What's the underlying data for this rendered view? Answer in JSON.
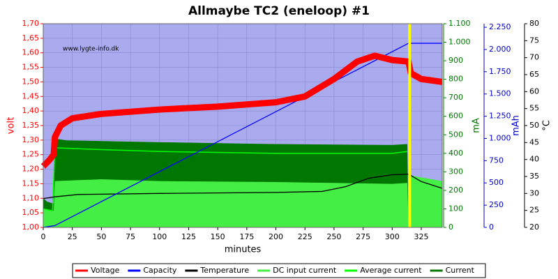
{
  "chart_data": {
    "type": "line",
    "title": "Allmaybe TC2 (eneloop) #1",
    "watermark": "www.lygte-info.dk",
    "xlabel": "minutes",
    "ylabel": "volt",
    "y2label": "mA",
    "y3label": "mAh",
    "y4label": "°C",
    "xlim": [
      0,
      343
    ],
    "xticks": [
      0,
      25,
      50,
      75,
      100,
      125,
      150,
      175,
      200,
      225,
      250,
      275,
      300,
      325
    ],
    "ylim": [
      1.0,
      1.7
    ],
    "yticks": [
      {
        "value": 1.0,
        "label": "1,00"
      },
      {
        "value": 1.05,
        "label": "1,05"
      },
      {
        "value": 1.1,
        "label": "1,10"
      },
      {
        "value": 1.15,
        "label": "1,15"
      },
      {
        "value": 1.2,
        "label": "1,20"
      },
      {
        "value": 1.25,
        "label": "1,25"
      },
      {
        "value": 1.3,
        "label": "1,30"
      },
      {
        "value": 1.35,
        "label": "1,35"
      },
      {
        "value": 1.4,
        "label": "1,40"
      },
      {
        "value": 1.45,
        "label": "1,45"
      },
      {
        "value": 1.5,
        "label": "1,50"
      },
      {
        "value": 1.55,
        "label": "1,55"
      },
      {
        "value": 1.6,
        "label": "1,60"
      },
      {
        "value": 1.65,
        "label": "1,65"
      },
      {
        "value": 1.7,
        "label": "1,70"
      }
    ],
    "y2lim": [
      0,
      1100
    ],
    "y2ticks": [
      0,
      100,
      200,
      300,
      400,
      500,
      600,
      700,
      800,
      900,
      {
        "value": 1000,
        "label": "1.000"
      },
      {
        "value": 1100,
        "label": "1.100"
      }
    ],
    "y3lim": [
      0,
      2290
    ],
    "y3ticks": [
      0,
      250,
      500,
      750,
      {
        "value": 1000,
        "label": "1.000"
      },
      {
        "value": 1250,
        "label": "1.250"
      },
      {
        "value": 1500,
        "label": "1.500"
      },
      {
        "value": 1750,
        "label": "1.750"
      },
      {
        "value": 2000,
        "label": "2.000"
      },
      {
        "value": 2250,
        "label": "2.250"
      }
    ],
    "y4lim": [
      20,
      80
    ],
    "y4ticks": [
      20,
      25,
      30,
      35,
      40,
      45,
      50,
      55,
      60,
      65,
      70,
      75,
      80
    ],
    "marker_x": 315,
    "marker_color": "#ffff00",
    "background": "#aaaaee",
    "series": [
      {
        "name": "Voltage",
        "color": "#ff0000",
        "axis": "y",
        "x": [
          0,
          5,
          9,
          10,
          15,
          25,
          50,
          100,
          150,
          200,
          225,
          250,
          270,
          285,
          300,
          314,
          316,
          325,
          343
        ],
        "values": [
          1.21,
          1.23,
          1.25,
          1.31,
          1.35,
          1.375,
          1.39,
          1.405,
          1.415,
          1.43,
          1.45,
          1.51,
          1.57,
          1.59,
          1.575,
          1.57,
          1.53,
          1.51,
          1.5
        ]
      },
      {
        "name": "Capacity",
        "color": "#0000ff",
        "axis": "y3",
        "x": [
          0,
          10,
          314,
          343
        ],
        "values": [
          0,
          20,
          2070,
          2070
        ]
      },
      {
        "name": "Temperature",
        "color": "#000000",
        "axis": "y4",
        "x": [
          0,
          10,
          30,
          100,
          200,
          240,
          260,
          280,
          300,
          314,
          325,
          343
        ],
        "values": [
          28.5,
          29,
          29.7,
          30,
          30.3,
          30.6,
          32,
          34.5,
          35.5,
          35.7,
          33.5,
          31.5
        ]
      },
      {
        "name": "DC input current",
        "color": "#44ee44",
        "axis": "y2",
        "fill": true,
        "x": [
          0,
          8,
          9,
          10,
          50,
          100,
          200,
          250,
          300,
          313,
          314,
          316,
          343
        ],
        "values": [
          100,
          90,
          90,
          250,
          260,
          250,
          245,
          240,
          235,
          240,
          20,
          280,
          250
        ]
      },
      {
        "name": "Average current",
        "color": "#00ff00",
        "axis": "y2",
        "x": [
          0,
          8,
          10,
          50,
          100,
          200,
          300,
          313
        ],
        "values": [
          100,
          90,
          430,
          420,
          410,
          400,
          400,
          410
        ]
      },
      {
        "name": "Current",
        "color": "#007700",
        "axis": "y2",
        "fill": true,
        "x": [
          0,
          3,
          8,
          9,
          10,
          20,
          100,
          200,
          300,
          313,
          314,
          343
        ],
        "values": [
          160,
          140,
          130,
          130,
          480,
          470,
          460,
          450,
          445,
          450,
          20,
          20
        ]
      }
    ]
  }
}
